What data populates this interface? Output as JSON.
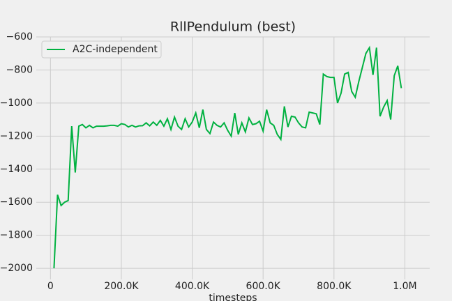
{
  "chart_data": {
    "type": "line",
    "title": "RllPendulum (best)",
    "x_label": "timesteps",
    "x": [
      10000,
      20000,
      30000,
      40000,
      50000,
      60000,
      70000,
      80000,
      90000,
      100000,
      110000,
      120000,
      130000,
      140000,
      150000,
      160000,
      170000,
      180000,
      190000,
      200000,
      210000,
      220000,
      230000,
      240000,
      250000,
      260000,
      270000,
      280000,
      290000,
      300000,
      310000,
      320000,
      330000,
      340000,
      350000,
      360000,
      370000,
      380000,
      390000,
      400000,
      410000,
      420000,
      430000,
      440000,
      450000,
      460000,
      470000,
      480000,
      490000,
      500000,
      510000,
      520000,
      530000,
      540000,
      550000,
      560000,
      570000,
      580000,
      590000,
      600000,
      610000,
      620000,
      630000,
      640000,
      650000,
      660000,
      670000,
      680000,
      690000,
      700000,
      710000,
      720000,
      730000,
      740000,
      750000,
      760000,
      770000,
      780000,
      790000,
      800000,
      810000,
      820000,
      830000,
      840000,
      850000,
      860000,
      870000,
      880000,
      890000,
      900000,
      910000,
      920000,
      930000,
      940000,
      950000,
      960000,
      970000,
      980000,
      990000
    ],
    "series": [
      {
        "name": "A2C-independent",
        "color": "#00b140",
        "values": [
          -2000,
          -1555,
          -1620,
          -1600,
          -1590,
          -1140,
          -1420,
          -1140,
          -1130,
          -1150,
          -1135,
          -1150,
          -1140,
          -1140,
          -1140,
          -1138,
          -1135,
          -1135,
          -1140,
          -1125,
          -1130,
          -1145,
          -1135,
          -1145,
          -1138,
          -1137,
          -1120,
          -1138,
          -1115,
          -1135,
          -1105,
          -1140,
          -1095,
          -1160,
          -1085,
          -1140,
          -1160,
          -1095,
          -1145,
          -1115,
          -1060,
          -1150,
          -1040,
          -1160,
          -1185,
          -1115,
          -1135,
          -1145,
          -1120,
          -1165,
          -1200,
          -1060,
          -1190,
          -1120,
          -1175,
          -1090,
          -1130,
          -1125,
          -1110,
          -1170,
          -1040,
          -1120,
          -1135,
          -1190,
          -1220,
          -1020,
          -1145,
          -1080,
          -1085,
          -1120,
          -1145,
          -1150,
          -1055,
          -1060,
          -1065,
          -1130,
          -825,
          -840,
          -845,
          -845,
          -1000,
          -940,
          -825,
          -815,
          -930,
          -965,
          -870,
          -785,
          -700,
          -665,
          -830,
          -665,
          -1080,
          -1025,
          -985,
          -1100,
          -835,
          -775,
          -910
        ]
      }
    ],
    "xlim": [
      -40000,
      1070000
    ],
    "xticks": [
      0,
      {
        "value": 200000,
        "label": "200.0K"
      },
      {
        "value": 400000,
        "label": "400.0K"
      },
      {
        "value": 600000,
        "label": "600.0K"
      },
      {
        "value": 800000,
        "label": "800.0K"
      },
      {
        "value": 1000000,
        "label": "1.0M"
      }
    ],
    "ylim": [
      -2067,
      -598
    ],
    "yticks": [
      {
        "value": -2000,
        "label": "−2000"
      },
      {
        "value": -1800,
        "label": "−1800"
      },
      {
        "value": -1600,
        "label": "−1600"
      },
      {
        "value": -1400,
        "label": "−1400"
      },
      {
        "value": -1200,
        "label": "−1200"
      },
      {
        "value": -1000,
        "label": "−1000"
      },
      {
        "value": -800,
        "label": "−800"
      },
      {
        "value": -600,
        "label": "−600"
      }
    ],
    "grid": true,
    "legend": "upper left"
  }
}
